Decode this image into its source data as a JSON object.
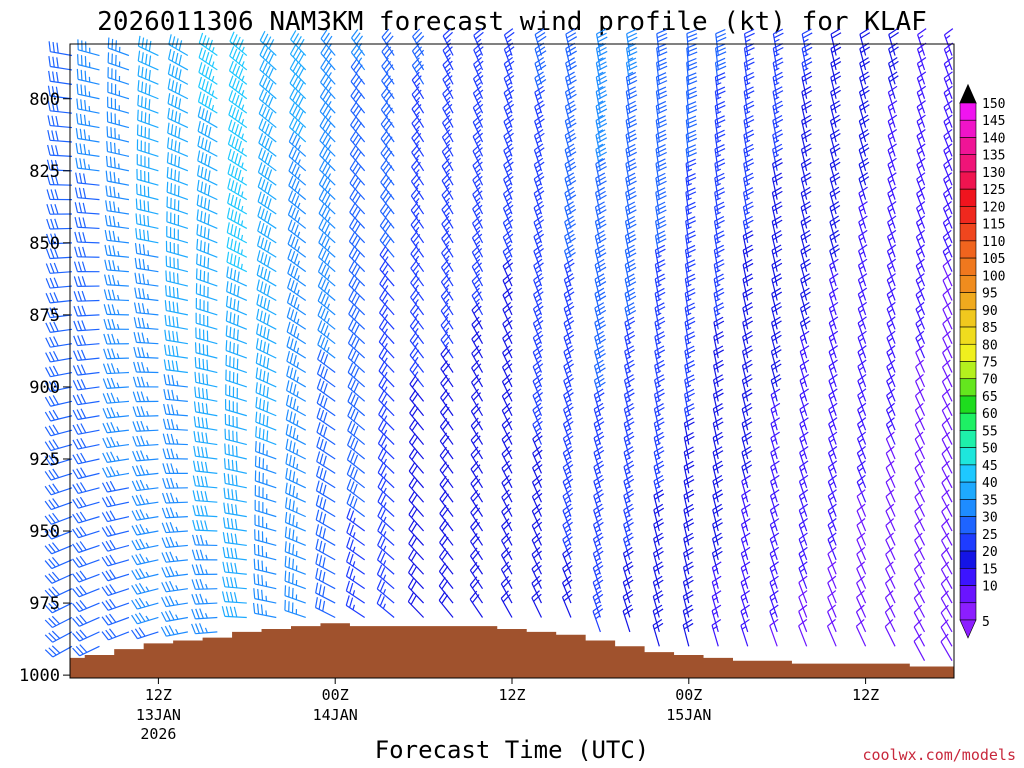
{
  "chart_data": {
    "type": "wind_barb_time_height",
    "title": "2026011306 NAM3KM forecast wind profile (kt) for KLAF",
    "xlabel": "Forecast Time (UTC)",
    "ylabel": "",
    "credit": "coolwx.com/models",
    "x_range_hours": [
      6,
      66
    ],
    "y_range_hpa": [
      781,
      1001
    ],
    "y_ticks": [
      {
        "value": 800,
        "label": "800"
      },
      {
        "value": 825,
        "label": "825"
      },
      {
        "value": 850,
        "label": "850"
      },
      {
        "value": 875,
        "label": "875"
      },
      {
        "value": 900,
        "label": "900"
      },
      {
        "value": 925,
        "label": "925"
      },
      {
        "value": 950,
        "label": "950"
      },
      {
        "value": 975,
        "label": "975"
      },
      {
        "value": 1000,
        "label": "1000"
      }
    ],
    "x_ticks": [
      {
        "hour": 12,
        "label": "12Z",
        "date": "13JAN",
        "year": "2026"
      },
      {
        "hour": 24,
        "label": "00Z",
        "date": "14JAN",
        "year": ""
      },
      {
        "hour": 36,
        "label": "12Z",
        "date": "",
        "year": ""
      },
      {
        "hour": 48,
        "label": "00Z",
        "date": "15JAN",
        "year": ""
      },
      {
        "hour": 60,
        "label": "12Z",
        "date": "",
        "year": ""
      }
    ],
    "barb_columns_hours": [
      6,
      8,
      10,
      12,
      14,
      16,
      18,
      20,
      22,
      24,
      26,
      28,
      30,
      32,
      34,
      36,
      38,
      40,
      42,
      44,
      46,
      48,
      50,
      52,
      54,
      56,
      58,
      60,
      62,
      64,
      66
    ],
    "barb_levels_hpa": [
      785,
      790,
      795,
      800,
      805,
      810,
      815,
      820,
      825,
      830,
      835,
      840,
      845,
      850,
      855,
      860,
      865,
      870,
      875,
      880,
      885,
      890,
      895,
      900,
      905,
      910,
      915,
      920,
      925,
      930,
      935,
      940,
      945,
      950,
      955,
      960,
      965,
      970,
      975,
      980,
      985,
      990,
      995
    ],
    "wind_keyframes": [
      {
        "hour": 6,
        "upper_dir": 280,
        "upper_speed": 30,
        "lower_dir": 240,
        "lower_speed": 28
      },
      {
        "hour": 12,
        "upper_dir": 295,
        "upper_speed": 40,
        "lower_dir": 250,
        "lower_speed": 32
      },
      {
        "hour": 18,
        "upper_dir": 310,
        "upper_speed": 45,
        "lower_dir": 270,
        "lower_speed": 38
      },
      {
        "hour": 24,
        "upper_dir": 320,
        "upper_speed": 35,
        "lower_dir": 295,
        "lower_speed": 30
      },
      {
        "hour": 30,
        "upper_dir": 330,
        "upper_speed": 28,
        "lower_dir": 315,
        "lower_speed": 18
      },
      {
        "hour": 36,
        "upper_dir": 340,
        "upper_speed": 25,
        "lower_dir": 330,
        "lower_speed": 18
      },
      {
        "hour": 42,
        "upper_dir": 350,
        "upper_speed": 35,
        "lower_dir": 340,
        "lower_speed": 22
      },
      {
        "hour": 48,
        "upper_dir": 355,
        "upper_speed": 30,
        "lower_dir": 345,
        "lower_speed": 18
      },
      {
        "hour": 54,
        "upper_dir": 350,
        "upper_speed": 25,
        "lower_dir": 340,
        "lower_speed": 12
      },
      {
        "hour": 60,
        "upper_dir": 345,
        "upper_speed": 20,
        "lower_dir": 335,
        "lower_speed": 10
      },
      {
        "hour": 66,
        "upper_dir": 340,
        "upper_speed": 15,
        "lower_dir": 330,
        "lower_speed": 8
      }
    ],
    "surface_pressure": {
      "hours": [
        6,
        8,
        10,
        12,
        14,
        16,
        18,
        20,
        22,
        24,
        26,
        28,
        30,
        32,
        34,
        36,
        38,
        40,
        42,
        44,
        46,
        48,
        50,
        52,
        54,
        56,
        58,
        60,
        62,
        64,
        66
      ],
      "hpa": [
        994,
        993,
        991,
        989,
        988,
        987,
        985,
        984,
        983,
        982,
        983,
        983,
        983,
        983,
        983,
        984,
        985,
        986,
        988,
        990,
        992,
        993,
        994,
        995,
        995,
        996,
        996,
        996,
        996,
        997,
        997
      ]
    },
    "colorbar": {
      "values": [
        5,
        10,
        15,
        20,
        25,
        30,
        35,
        40,
        45,
        50,
        55,
        60,
        65,
        70,
        75,
        80,
        85,
        90,
        95,
        100,
        105,
        110,
        115,
        120,
        125,
        130,
        135,
        140,
        145,
        150
      ],
      "colors": [
        "#8c1eff",
        "#6a14ff",
        "#3c14ff",
        "#1414e6",
        "#1e3cff",
        "#1e64ff",
        "#1e8cff",
        "#1eaaff",
        "#1ec8ff",
        "#1ee6dc",
        "#1ef0aa",
        "#1ef064",
        "#1edc1e",
        "#64e61e",
        "#b4f01e",
        "#f0f01e",
        "#f0dc1e",
        "#f0c81e",
        "#f0aa1e",
        "#f08c1e",
        "#f0781e",
        "#f0641e",
        "#f0461e",
        "#f0281e",
        "#f0141e",
        "#f01450",
        "#f01478",
        "#f01496",
        "#f014c8",
        "#f014f0"
      ]
    },
    "colors": {
      "ground": "#a0522d",
      "background": "#ffffff",
      "axis": "#000000",
      "credit": "#c8283c"
    }
  }
}
